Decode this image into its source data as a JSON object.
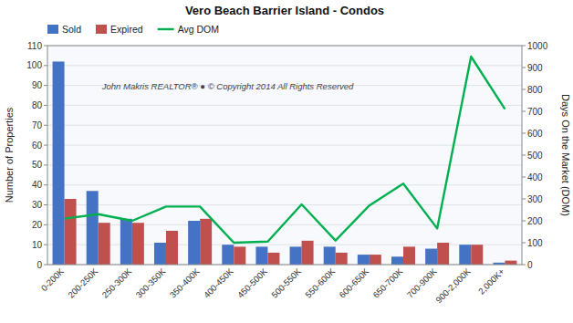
{
  "chart_data": {
    "type": "bar",
    "title": "Vero Beach Barrier Island - Condos",
    "categories": [
      "0-200K",
      "200-250K",
      "250-300K",
      "300-350K",
      "350-400K",
      "400-450K",
      "450-500K",
      "500-550K",
      "550-600K",
      "600-650K",
      "650-700K",
      "700-900K",
      "900-2,000K",
      "2,000K+"
    ],
    "series": [
      {
        "name": "Sold",
        "color": "#4472C4",
        "values": [
          102,
          37,
          23,
          11,
          22,
          10,
          9,
          9,
          9,
          5,
          4,
          8,
          10,
          1
        ]
      },
      {
        "name": "Expired",
        "color": "#C0504D",
        "values": [
          33,
          21,
          21,
          17,
          23,
          9,
          6,
          12,
          6,
          5,
          9,
          11,
          10,
          2
        ]
      },
      {
        "name": "Avg DOM",
        "type": "line",
        "axis": "y2",
        "color": "#00B050",
        "values": [
          210,
          230,
          200,
          265,
          265,
          100,
          105,
          275,
          110,
          270,
          370,
          165,
          950,
          710
        ]
      }
    ],
    "ylabel": "Number of Properties",
    "y2label": "Days On the Market (DOM)",
    "ylim": [
      0,
      110
    ],
    "yticks": [
      0,
      10,
      20,
      30,
      40,
      50,
      60,
      70,
      80,
      90,
      100,
      110
    ],
    "y2lim": [
      0,
      1000
    ],
    "y2ticks": [
      0,
      100,
      200,
      300,
      400,
      500,
      600,
      700,
      800,
      900,
      1000
    ],
    "annotations": [
      "John Makris REALTOR®  ●  © Copyright 2014 All Rights Reserved"
    ],
    "grid": true,
    "legend": "top"
  }
}
